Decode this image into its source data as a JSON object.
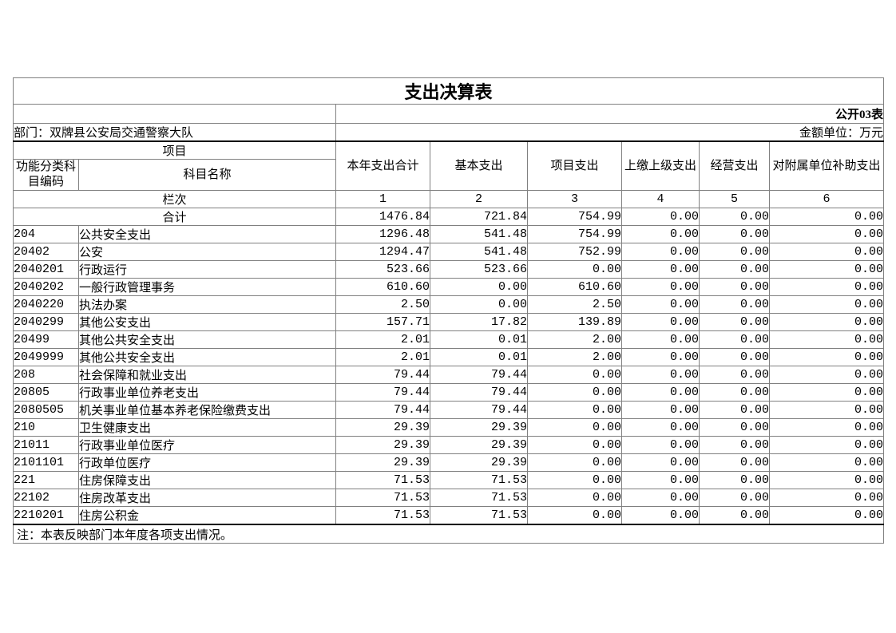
{
  "page": {
    "title": "支出决算表",
    "table_label": "公开03表",
    "department": "部门：双牌县公安局交通警察大队",
    "unit": "金额单位：万元",
    "note": "注：本表反映部门本年度各项支出情况。"
  },
  "table": {
    "project_header": "项目",
    "code_header": "功能分类科目编码",
    "name_header": "科目名称",
    "value_headers": [
      "本年支出合计",
      "基本支出",
      "项目支出",
      "上缴上级支出",
      "经营支出",
      "对附属单位补助支出"
    ],
    "rank_label": "栏次",
    "rank_numbers": [
      "1",
      "2",
      "3",
      "4",
      "5",
      "6"
    ],
    "total": {
      "label": "合计",
      "values": [
        "1476.84",
        "721.84",
        "754.99",
        "0.00",
        "0.00",
        "0.00"
      ]
    },
    "rows": [
      {
        "code": "204",
        "name": "公共安全支出",
        "values": [
          "1296.48",
          "541.48",
          "754.99",
          "0.00",
          "0.00",
          "0.00"
        ]
      },
      {
        "code": "20402",
        "name": "公安",
        "values": [
          "1294.47",
          "541.48",
          "752.99",
          "0.00",
          "0.00",
          "0.00"
        ]
      },
      {
        "code": "2040201",
        "name": "行政运行",
        "values": [
          "523.66",
          "523.66",
          "0.00",
          "0.00",
          "0.00",
          "0.00"
        ]
      },
      {
        "code": "2040202",
        "name": "一般行政管理事务",
        "values": [
          "610.60",
          "0.00",
          "610.60",
          "0.00",
          "0.00",
          "0.00"
        ]
      },
      {
        "code": "2040220",
        "name": "执法办案",
        "values": [
          "2.50",
          "0.00",
          "2.50",
          "0.00",
          "0.00",
          "0.00"
        ]
      },
      {
        "code": "2040299",
        "name": "其他公安支出",
        "values": [
          "157.71",
          "17.82",
          "139.89",
          "0.00",
          "0.00",
          "0.00"
        ]
      },
      {
        "code": "20499",
        "name": "其他公共安全支出",
        "values": [
          "2.01",
          "0.01",
          "2.00",
          "0.00",
          "0.00",
          "0.00"
        ]
      },
      {
        "code": "2049999",
        "name": "其他公共安全支出",
        "values": [
          "2.01",
          "0.01",
          "2.00",
          "0.00",
          "0.00",
          "0.00"
        ]
      },
      {
        "code": "208",
        "name": "社会保障和就业支出",
        "values": [
          "79.44",
          "79.44",
          "0.00",
          "0.00",
          "0.00",
          "0.00"
        ]
      },
      {
        "code": "20805",
        "name": "行政事业单位养老支出",
        "values": [
          "79.44",
          "79.44",
          "0.00",
          "0.00",
          "0.00",
          "0.00"
        ]
      },
      {
        "code": "2080505",
        "name": "机关事业单位基本养老保险缴费支出",
        "values": [
          "79.44",
          "79.44",
          "0.00",
          "0.00",
          "0.00",
          "0.00"
        ]
      },
      {
        "code": "210",
        "name": "卫生健康支出",
        "values": [
          "29.39",
          "29.39",
          "0.00",
          "0.00",
          "0.00",
          "0.00"
        ]
      },
      {
        "code": "21011",
        "name": "行政事业单位医疗",
        "values": [
          "29.39",
          "29.39",
          "0.00",
          "0.00",
          "0.00",
          "0.00"
        ]
      },
      {
        "code": "2101101",
        "name": "行政单位医疗",
        "values": [
          "29.39",
          "29.39",
          "0.00",
          "0.00",
          "0.00",
          "0.00"
        ]
      },
      {
        "code": "221",
        "name": "住房保障支出",
        "values": [
          "71.53",
          "71.53",
          "0.00",
          "0.00",
          "0.00",
          "0.00"
        ]
      },
      {
        "code": "22102",
        "name": "住房改革支出",
        "values": [
          "71.53",
          "71.53",
          "0.00",
          "0.00",
          "0.00",
          "0.00"
        ]
      },
      {
        "code": "2210201",
        "name": "住房公积金",
        "values": [
          "71.53",
          "71.53",
          "0.00",
          "0.00",
          "0.00",
          "0.00"
        ]
      }
    ]
  }
}
